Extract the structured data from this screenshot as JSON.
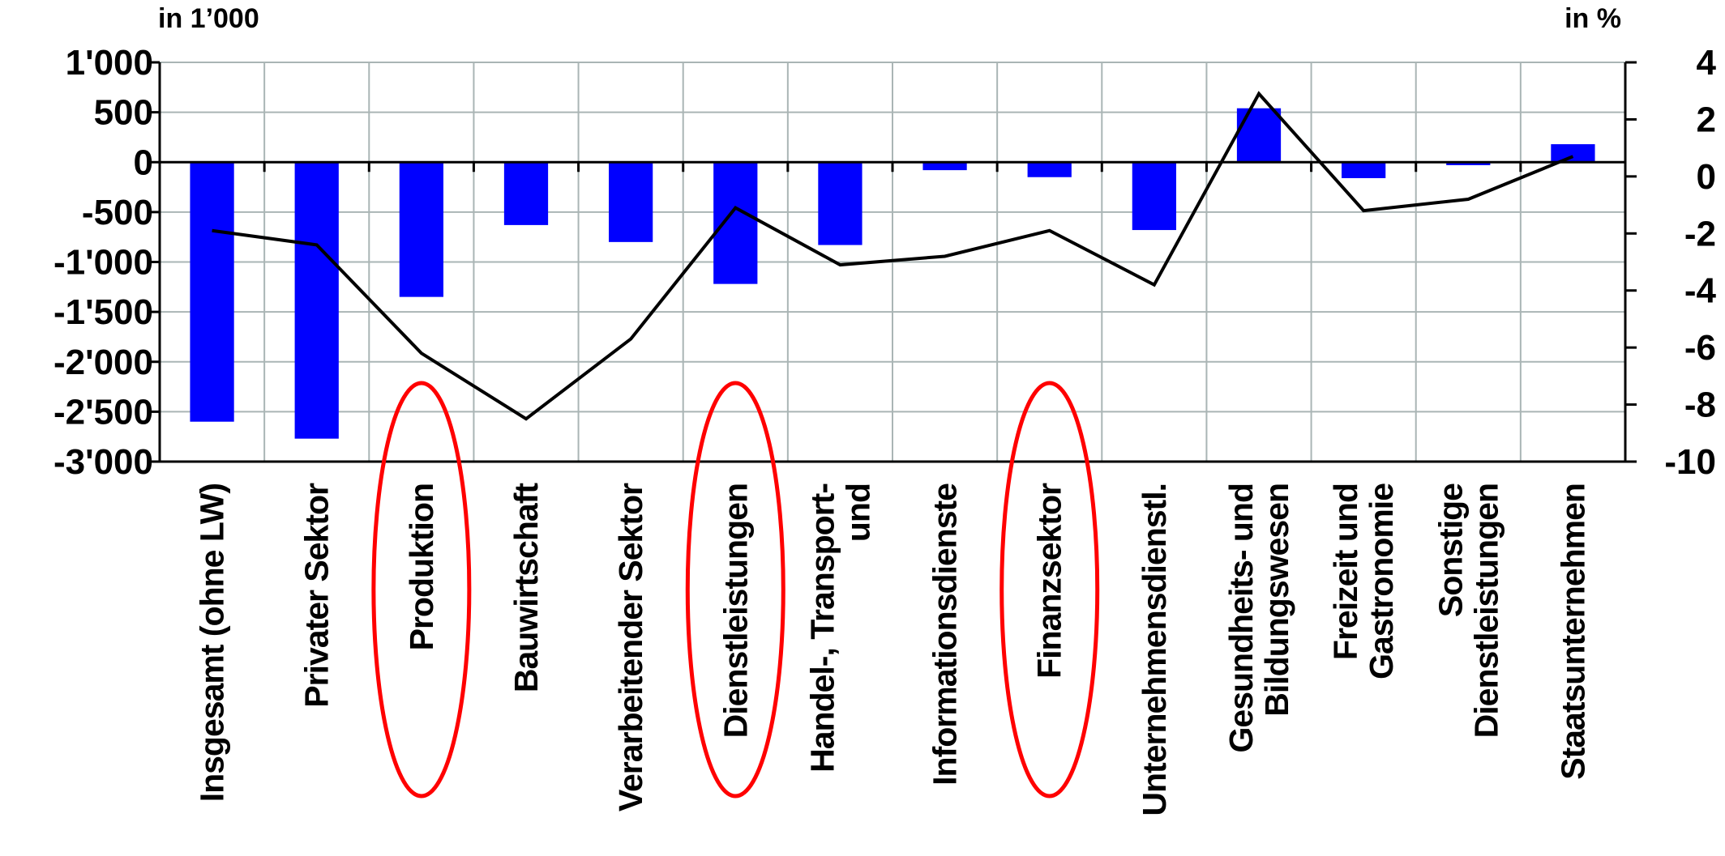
{
  "chart_data": {
    "type": "bar",
    "left_unit": "in 1’000",
    "right_unit": "in %",
    "ylim_left": [
      -3000,
      1000
    ],
    "ylim_right": [
      -10,
      4
    ],
    "yticks_left": [
      "1'000",
      "500",
      "0",
      "-500",
      "-1'000",
      "-1'500",
      "-2'000",
      "-2'500",
      "-3'000"
    ],
    "yticks_right": [
      "4",
      "2",
      "0",
      "-2",
      "-4",
      "-6",
      "-8",
      "-10"
    ],
    "grid": true,
    "bar_color": "#0000ff",
    "line_color": "#000000",
    "highlight_color": "#ff0000",
    "categories": [
      [
        "Insgesamt (ohne LW)"
      ],
      [
        "Privater Sektor"
      ],
      [
        "Produktion"
      ],
      [
        "Bauwirtschaft"
      ],
      [
        "Verarbeitender Sektor"
      ],
      [
        "Dienstleistungen"
      ],
      [
        "Handel-, Transport-",
        "und"
      ],
      [
        "Informationsdienste"
      ],
      [
        "Finanzsektor"
      ],
      [
        "Unternehmensdienstl."
      ],
      [
        "Gesundheits- und",
        "Bildungswesen"
      ],
      [
        "Freizeit und",
        "Gastronomie"
      ],
      [
        "Sonstige",
        "Dienstleistungen"
      ],
      [
        "Staatsunternehmen"
      ]
    ],
    "bars": [
      -2600,
      -2770,
      -1350,
      -630,
      -800,
      -1220,
      -830,
      -80,
      -150,
      -680,
      540,
      -160,
      -30,
      180
    ],
    "line": [
      -1.9,
      -2.4,
      -6.2,
      -8.5,
      -5.7,
      -1.1,
      -3.1,
      -2.8,
      -1.9,
      -3.8,
      2.9,
      -1.2,
      -0.8,
      0.7
    ],
    "highlighted": [
      2,
      5,
      8
    ]
  }
}
